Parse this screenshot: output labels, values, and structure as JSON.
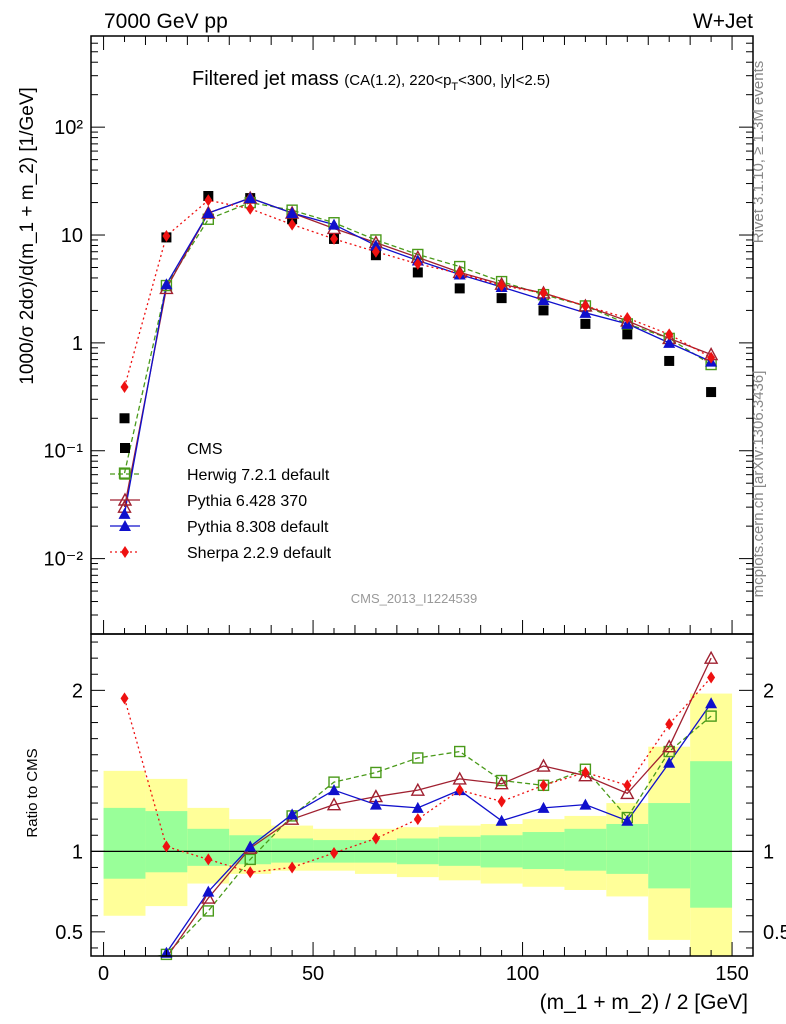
{
  "header": {
    "left": "7000 GeV pp",
    "right": "W+Jet"
  },
  "side_labels": {
    "rivet": "Rivet 3.1.10, ≥ 1.3M events",
    "mcplots": "mcplots.cern.ch [arXiv:1306.3436]"
  },
  "watermark": "CMS_2013_I1224539",
  "chart_data": [
    {
      "type": "line",
      "title_main": "Filtered jet mass",
      "title_sub": "(CA(1.2), 220<p",
      "title_sub_index": "T",
      "title_sub_rest": "<300, |y|<2.5)",
      "ylabel": "1000/σ 2dσ)/d(m_1 + m_2) [1/GeV]",
      "yscale": "log",
      "ylim": [
        0.002,
        700
      ],
      "xlim": [
        -3,
        155
      ],
      "ytick_labels": [
        "10⁻²",
        "10⁻¹",
        "1",
        "10",
        "10²"
      ],
      "ytick_values": [
        0.01,
        0.1,
        1,
        10,
        100
      ],
      "legend_position": "lower-left",
      "x": [
        5,
        15,
        25,
        35,
        45,
        55,
        65,
        75,
        85,
        95,
        105,
        115,
        125,
        135,
        145
      ],
      "series": [
        {
          "name": "CMS",
          "color": "#000000",
          "marker": "square-filled",
          "line": "none",
          "values": [
            0.2,
            9.5,
            23,
            22,
            14,
            9.2,
            6.5,
            4.5,
            3.2,
            2.6,
            2.0,
            1.5,
            1.2,
            0.68,
            0.35
          ]
        },
        {
          "name": "Herwig 7.2.1 default",
          "color": "#4a9a1a",
          "marker": "square-open",
          "line": "dashed",
          "values": [
            0.062,
            3.4,
            14,
            20,
            17,
            13,
            9.0,
            6.6,
            5.1,
            3.7,
            2.8,
            2.2,
            1.5,
            1.1,
            0.63
          ]
        },
        {
          "name": "Pythia 6.428 370",
          "color": "#a02030",
          "marker": "triangle-open",
          "line": "solid",
          "values": [
            0.03,
            3.2,
            16,
            22,
            16,
            11.5,
            8.5,
            6.2,
            4.5,
            3.5,
            2.9,
            2.2,
            1.6,
            1.1,
            0.78
          ]
        },
        {
          "name": "Pythia 8.308 default",
          "color": "#1010cc",
          "marker": "triangle-filled",
          "line": "solid",
          "values": [
            0.026,
            3.5,
            16,
            22,
            16,
            12.5,
            8.0,
            5.8,
            4.3,
            3.3,
            2.5,
            1.9,
            1.5,
            1.0,
            0.67
          ]
        },
        {
          "name": "Sherpa 2.2.9 default",
          "color": "#ee1111",
          "marker": "diamond-filled",
          "line": "dotted",
          "values": [
            0.39,
            9.8,
            21,
            17.5,
            12.5,
            9.2,
            7.0,
            5.4,
            4.4,
            3.4,
            2.9,
            2.2,
            1.7,
            1.2,
            0.73
          ]
        }
      ]
    },
    {
      "type": "line",
      "ylabel": "Ratio to CMS",
      "xlabel": "(m_1 + m_2) / 2 [GeV]",
      "ylim": [
        0.35,
        2.35
      ],
      "xlim": [
        -3,
        155
      ],
      "xtick_values": [
        0,
        50,
        100,
        150
      ],
      "xtick_labels": [
        "0",
        "50",
        "100",
        "150"
      ],
      "ytick_values": [
        0.5,
        1,
        2
      ],
      "ytick_labels": [
        "0.5",
        "1",
        "2"
      ],
      "bands": {
        "x_edges": [
          0,
          10,
          20,
          30,
          40,
          50,
          60,
          70,
          80,
          90,
          100,
          110,
          120,
          130,
          140,
          150
        ],
        "outer_color": "#ffff99",
        "inner_color": "#99ff99",
        "outer_low": [
          0.6,
          0.66,
          0.8,
          0.86,
          0.88,
          0.88,
          0.86,
          0.84,
          0.82,
          0.8,
          0.78,
          0.76,
          0.72,
          0.45,
          0.3
        ],
        "outer_high": [
          1.5,
          1.45,
          1.27,
          1.2,
          1.16,
          1.14,
          1.14,
          1.15,
          1.16,
          1.17,
          1.2,
          1.22,
          1.3,
          1.65,
          1.98
        ],
        "inner_low": [
          0.83,
          0.87,
          0.91,
          0.92,
          0.93,
          0.93,
          0.93,
          0.92,
          0.91,
          0.9,
          0.89,
          0.88,
          0.86,
          0.77,
          0.65
        ],
        "inner_high": [
          1.27,
          1.25,
          1.14,
          1.1,
          1.08,
          1.07,
          1.07,
          1.08,
          1.09,
          1.1,
          1.12,
          1.14,
          1.17,
          1.3,
          1.56
        ]
      },
      "series": [
        {
          "name": "Herwig 7.2.1 default",
          "color": "#4a9a1a",
          "marker": "square-open",
          "line": "dashed",
          "values": [
            0.31,
            0.36,
            0.63,
            0.95,
            1.22,
            1.43,
            1.49,
            1.58,
            1.62,
            1.44,
            1.41,
            1.51,
            1.21,
            1.62,
            1.84
          ]
        },
        {
          "name": "Pythia 6.428 370",
          "color": "#a02030",
          "marker": "triangle-open",
          "line": "solid",
          "values": [
            0.15,
            0.34,
            0.71,
            1.02,
            1.2,
            1.29,
            1.34,
            1.38,
            1.45,
            1.42,
            1.53,
            1.47,
            1.36,
            1.65,
            2.2
          ]
        },
        {
          "name": "Pythia 8.308 default",
          "color": "#1010cc",
          "marker": "triangle-filled",
          "line": "solid",
          "values": [
            0.13,
            0.37,
            0.75,
            1.03,
            1.23,
            1.38,
            1.29,
            1.27,
            1.38,
            1.19,
            1.27,
            1.29,
            1.19,
            1.55,
            1.92
          ]
        },
        {
          "name": "Sherpa 2.2.9 default",
          "color": "#ee1111",
          "marker": "diamond-filled",
          "line": "dotted",
          "values": [
            1.95,
            1.03,
            0.95,
            0.87,
            0.9,
            0.99,
            1.08,
            1.2,
            1.38,
            1.31,
            1.41,
            1.49,
            1.41,
            1.79,
            2.08
          ]
        }
      ]
    }
  ]
}
